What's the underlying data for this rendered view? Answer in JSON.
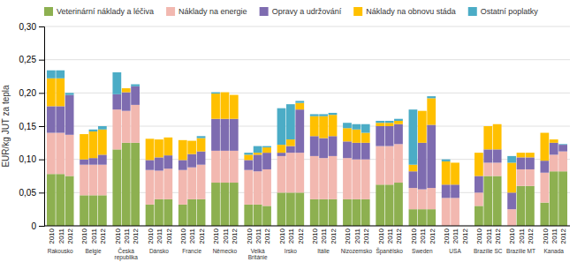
{
  "chart_data": {
    "type": "bar",
    "stacked": true,
    "categories": [
      "2010",
      "2011",
      "2012",
      "2010",
      "2011",
      "2012",
      "2010",
      "2011",
      "2012",
      "2010",
      "2011",
      "2012",
      "2010",
      "2011",
      "2012",
      "2010",
      "2011",
      "2012",
      "2010",
      "2011",
      "2012",
      "2010",
      "2011",
      "2012",
      "2010",
      "2011",
      "2012",
      "2010",
      "2011",
      "2012",
      "2010",
      "2011",
      "2012",
      "2010",
      "2011",
      "2012",
      "2010",
      "2011",
      "2012",
      "2010",
      "2011",
      "2012",
      "2010",
      "2011",
      "2012",
      "2010",
      "2011",
      "2012"
    ],
    "groups": [
      "Rakousko",
      "Belgie",
      "Česká\nrepublika",
      "Dánsko",
      "Francie",
      "Německo",
      "Velká\nBritánie",
      "Irsko",
      "Itálie",
      "Nizozemsko",
      "Španělsko",
      "Sweden",
      "USA",
      "Brazílie SC",
      "Brazílie MT",
      "Kanada"
    ],
    "ylabel": "EUR/kg JUT za tepla",
    "ylim": [
      0,
      0.3
    ],
    "yticks": [
      0,
      {
        "value": 0.05,
        "label": "0,05"
      },
      {
        "value": 0.1,
        "label": "0,10"
      },
      {
        "value": 0.15,
        "label": "0,15"
      },
      {
        "value": 0.2,
        "label": "0,20"
      },
      {
        "value": 0.25,
        "label": "0,25"
      },
      {
        "value": 0.3,
        "label": "0,30"
      }
    ],
    "grid": true,
    "legend": "top",
    "series": [
      {
        "name": "Veterinární náklady a léčiva",
        "color": "#8db050",
        "values": [
          0.078,
          0.078,
          0.075,
          0.046,
          0.046,
          0.046,
          0.115,
          0.125,
          0.125,
          0.032,
          0.04,
          0.04,
          0.032,
          0.04,
          0.04,
          0.065,
          0.065,
          0.065,
          0.032,
          0.032,
          0.03,
          0.05,
          0.05,
          0.05,
          0.04,
          0.04,
          0.04,
          0.04,
          0.04,
          0.04,
          0.062,
          0.062,
          0.065,
          0.025,
          0.025,
          0.025,
          0,
          0,
          0,
          0.03,
          0.075,
          0.075,
          0,
          0.06,
          0.06,
          0.035,
          0.082,
          0.082
        ]
      },
      {
        "name": "Náklady na energie",
        "color": "#f2b8b0",
        "values": [
          0.062,
          0.062,
          0.062,
          0.046,
          0.046,
          0.046,
          0.06,
          0.048,
          0.057,
          0.052,
          0.043,
          0.046,
          0.052,
          0.048,
          0.052,
          0.048,
          0.048,
          0.048,
          0.052,
          0.05,
          0.055,
          0.055,
          0.06,
          0.06,
          0.065,
          0.062,
          0.065,
          0.062,
          0.06,
          0.06,
          0.058,
          0.058,
          0.058,
          0.032,
          0.03,
          0.032,
          0.042,
          0.042,
          0,
          0.02,
          0.02,
          0.02,
          0.025,
          0.025,
          0.025,
          0.045,
          0.025,
          0.03
        ]
      },
      {
        "name": "Opravy a udržování",
        "color": "#7e6cb0",
        "values": [
          0.04,
          0.04,
          0.06,
          0.008,
          0.01,
          0.015,
          0.023,
          0.028,
          0.028,
          0.015,
          0.02,
          0.02,
          0.015,
          0.02,
          0.02,
          0.048,
          0.048,
          0.048,
          0.015,
          0.025,
          0.025,
          0.005,
          0.01,
          0.065,
          0.03,
          0.03,
          0.03,
          0.025,
          0.025,
          0.025,
          0.03,
          0.03,
          0.03,
          0.025,
          0.07,
          0.095,
          0.02,
          0.02,
          0,
          0.025,
          0.02,
          0.02,
          0.025,
          0.018,
          0.018,
          0.018,
          0.018,
          0.01
        ]
      },
      {
        "name": "Náklady na obnovu stáda",
        "color": "#ffc000",
        "values": [
          0.042,
          0.042,
          0,
          0.038,
          0.04,
          0.038,
          0,
          0.006,
          0,
          0.032,
          0.027,
          0.027,
          0.03,
          0.02,
          0.02,
          0.038,
          0.04,
          0.036,
          0.008,
          0.003,
          0.008,
          0.012,
          0.01,
          0.01,
          0.03,
          0.033,
          0.032,
          0.02,
          0.02,
          0.015,
          0.005,
          0.005,
          0.005,
          0.01,
          0.048,
          0.04,
          0.035,
          0.033,
          0,
          0.035,
          0.035,
          0.038,
          0.045,
          0.007,
          0.007,
          0.042,
          0.005,
          0
        ]
      },
      {
        "name": "Ostatní poplatky",
        "color": "#4bacc6",
        "values": [
          0.012,
          0.012,
          0.003,
          0,
          0.003,
          0.005,
          0.033,
          0,
          0.003,
          0,
          0,
          0,
          0,
          0,
          0.003,
          0.002,
          0,
          0,
          0.003,
          0.01,
          0.002,
          0.055,
          0.053,
          0.003,
          0.003,
          0.003,
          0.003,
          0.008,
          0.008,
          0.013,
          0.003,
          0.003,
          0.003,
          0.083,
          0,
          0.003,
          0.003,
          0,
          0,
          0,
          0,
          0,
          0.01,
          0,
          0,
          0,
          0,
          0.001
        ]
      }
    ]
  }
}
